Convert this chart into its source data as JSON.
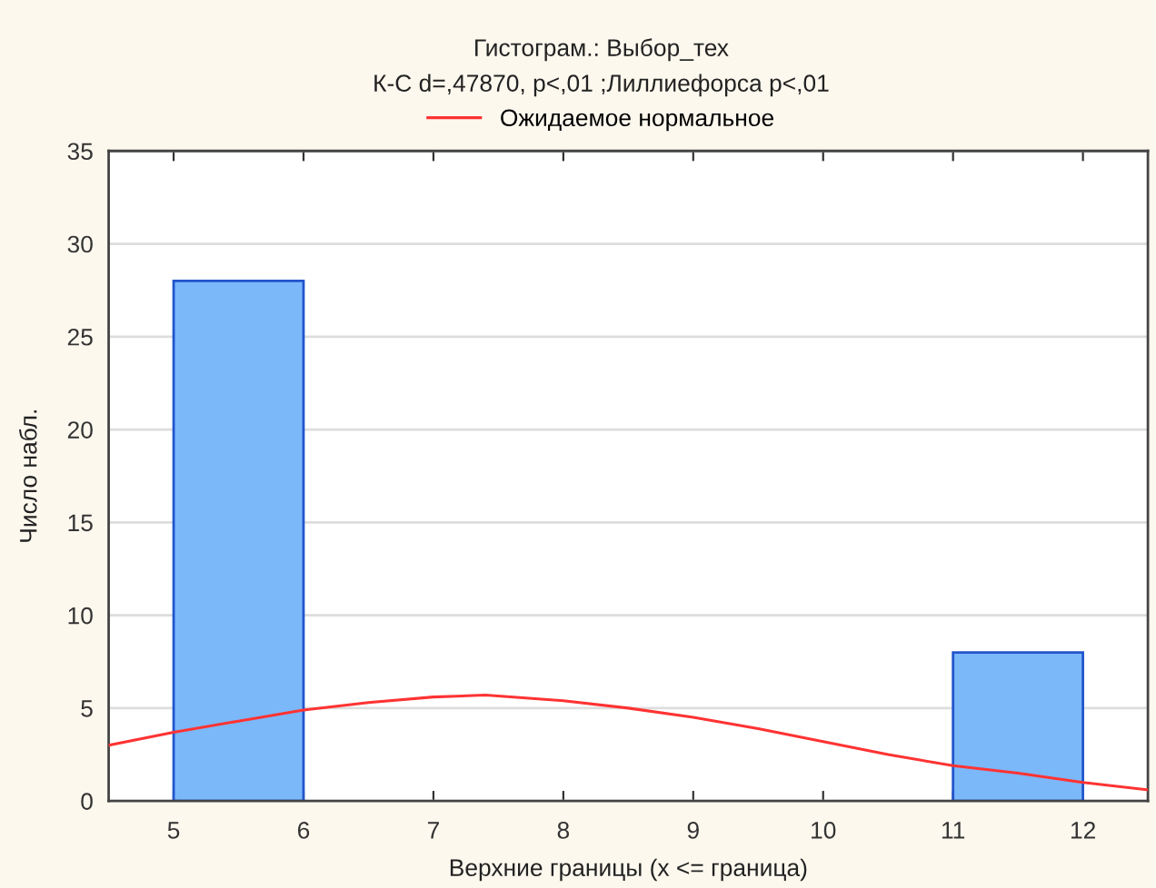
{
  "chart_data": {
    "type": "histogram",
    "title": "Гистограм.: Выбор_тех",
    "subtitle": "К-С d=,47870, p<,01 ;Лиллиефорса p<,01",
    "xlabel": "Верхние границы (x <= граница)",
    "ylabel": "Число набл.",
    "bins": [
      5,
      6,
      7,
      8,
      9,
      10,
      11,
      12
    ],
    "values": [
      28,
      0,
      0,
      0,
      0,
      0,
      8
    ],
    "color": "#7ab8fa",
    "series": [
      {
        "name": "Ожидаемое нормальное",
        "type": "line",
        "color": "#ff3333",
        "x": [
          4.5,
          5,
          5.5,
          6,
          6.5,
          7,
          7.4,
          8,
          8.5,
          9,
          9.5,
          10,
          10.5,
          11,
          11.5,
          12,
          12.5
        ],
        "values": [
          3.0,
          3.7,
          4.3,
          4.9,
          5.3,
          5.6,
          5.7,
          5.4,
          5.0,
          4.5,
          3.9,
          3.2,
          2.5,
          1.9,
          1.5,
          1.0,
          0.6
        ]
      }
    ],
    "xlim": [
      4.5,
      12.5
    ],
    "xticks": [
      5,
      6,
      7,
      8,
      9,
      10,
      11,
      12
    ],
    "ylim": [
      0,
      35
    ],
    "yticks": [
      0,
      5,
      10,
      15,
      20,
      25,
      30,
      35
    ],
    "grid": "y",
    "legend": "top"
  }
}
